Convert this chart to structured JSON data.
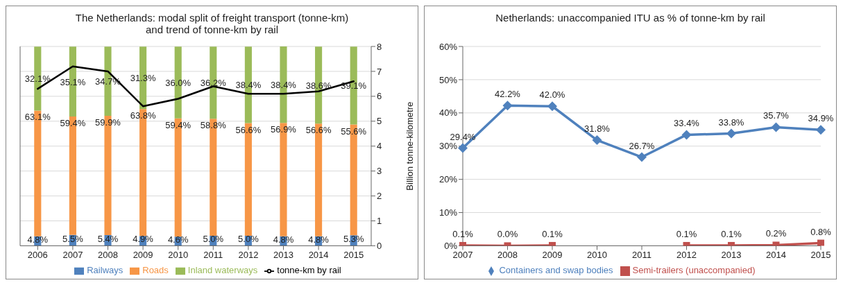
{
  "chart_data": [
    {
      "type": "bar",
      "stacked": true,
      "title": "The Netherlands: modal split of freight transport (tonne-km)\nand trend of tonne-km by rail",
      "y2label": "Billion tonne-kilometre",
      "categories": [
        "2006",
        "2007",
        "2008",
        "2009",
        "2010",
        "2011",
        "2012",
        "2013",
        "2014",
        "2015"
      ],
      "series": [
        {
          "name": "Railways",
          "type": "bar",
          "color": "#4f81bd",
          "values": [
            4.8,
            5.5,
            5.4,
            4.9,
            4.6,
            5.0,
            5.0,
            4.8,
            4.8,
            5.3
          ],
          "value_labels": [
            "4.8%",
            "5.5%",
            "5.4%",
            "4.9%",
            "4.6%",
            "5.0%",
            "5.0%",
            "4.8%",
            "4.8%",
            "5.3%"
          ]
        },
        {
          "name": "Roads",
          "type": "bar",
          "color": "#f79646",
          "values": [
            63.1,
            59.4,
            59.9,
            63.8,
            59.4,
            58.8,
            56.6,
            56.9,
            56.6,
            55.6
          ],
          "value_labels": [
            "63.1%",
            "59.4%",
            "59.9%",
            "63.8%",
            "59.4%",
            "58.8%",
            "56.6%",
            "56.9%",
            "56.6%",
            "55.6%"
          ]
        },
        {
          "name": "Inland waterways",
          "type": "bar",
          "color": "#9bbb59",
          "values": [
            32.1,
            35.1,
            34.7,
            31.3,
            36.0,
            36.2,
            38.4,
            38.4,
            38.6,
            39.1
          ],
          "value_labels": [
            "32.1%",
            "35.1%",
            "34.7%",
            "31.3%",
            "36.0%",
            "36.2%",
            "38.4%",
            "38.4%",
            "38.6%",
            "39.1%"
          ]
        },
        {
          "name": "tonne-km by rail",
          "type": "line",
          "axis": "y2",
          "color": "#000000",
          "marker": "none",
          "values": [
            6.3,
            7.2,
            7.0,
            5.6,
            5.9,
            6.4,
            6.1,
            6.1,
            6.2,
            6.6
          ]
        }
      ],
      "y2lim": [
        0,
        8
      ],
      "y2ticks": [
        0,
        1,
        2,
        3,
        4,
        5,
        6,
        7,
        8
      ],
      "grid": "y",
      "legend": "bottom"
    },
    {
      "type": "line",
      "title": "Netherlands: unaccompanied ITU as % of tonne-km by rail",
      "categories": [
        "2007",
        "2008",
        "2009",
        "2010",
        "2011",
        "2012",
        "2013",
        "2014",
        "2015"
      ],
      "series": [
        {
          "name": "Containers and swap bodies",
          "color": "#4f81bd",
          "marker": "diamond",
          "values": [
            29.4,
            42.2,
            42.0,
            31.8,
            26.7,
            33.4,
            33.8,
            35.7,
            34.9
          ],
          "value_labels": [
            "29.4%",
            "42.2%",
            "42.0%",
            "31.8%",
            "26.7%",
            "33.4%",
            "33.8%",
            "35.7%",
            "34.9%"
          ]
        },
        {
          "name": "Semi-trailers (unaccompanied)",
          "color": "#c0504d",
          "marker": "square",
          "values": [
            0.1,
            0.0,
            0.1,
            null,
            null,
            0.1,
            0.1,
            0.2,
            0.8
          ],
          "value_labels": [
            "0.1%",
            "0.0%",
            "0.1%",
            null,
            null,
            "0.1%",
            "0.1%",
            "0.2%",
            "0.8%"
          ]
        }
      ],
      "ylim": [
        0,
        60
      ],
      "yticks": [
        {
          "value": 0,
          "label": "0%"
        },
        {
          "value": 10,
          "label": "10%"
        },
        {
          "value": 20,
          "label": "20%"
        },
        {
          "value": 30,
          "label": "30%"
        },
        {
          "value": 40,
          "label": "40%"
        },
        {
          "value": 50,
          "label": "50%"
        },
        {
          "value": 60,
          "label": "60%"
        }
      ],
      "grid": "y",
      "legend": "bottom"
    }
  ]
}
